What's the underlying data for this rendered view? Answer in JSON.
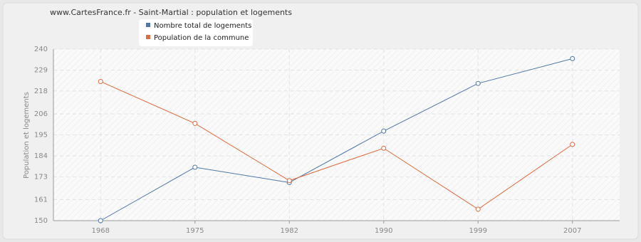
{
  "chart_data": {
    "type": "line",
    "title": "www.CartesFrance.fr - Saint-Martial : population et logements",
    "y_label": "Population et logements",
    "categories": [
      "1968",
      "1975",
      "1982",
      "1990",
      "1999",
      "2007"
    ],
    "series": [
      {
        "name": "Nombre total de logements",
        "color": "#4f77a8",
        "values": [
          150,
          178,
          170,
          197,
          222,
          235
        ]
      },
      {
        "name": "Population de la commune",
        "color": "#e0693f",
        "values": [
          223,
          201,
          171,
          188,
          156,
          190
        ]
      }
    ],
    "ylim": [
      150,
      240
    ],
    "yticks": [
      150,
      161,
      173,
      184,
      195,
      206,
      218,
      229,
      240
    ],
    "grid": true
  }
}
